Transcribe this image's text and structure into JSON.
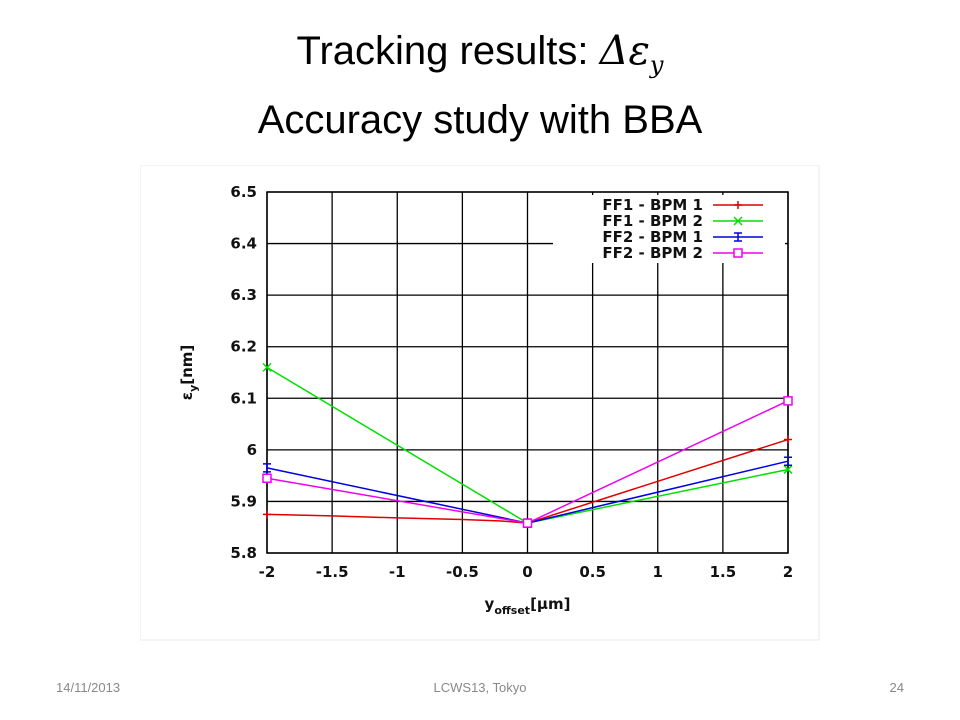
{
  "slide": {
    "title_text": "Tracking results: ",
    "title_math": "Δε",
    "title_math_subscript": "y",
    "subtitle": "Accuracy study with BBA",
    "footer_date": "14/11/2013",
    "footer_event": "LCWS13, Tokyo",
    "page_number": "24"
  },
  "chart_data": {
    "type": "line",
    "ylabel": "ε",
    "ylabel_subscript": "y",
    "ylabel_unit": "[nm]",
    "xlabel": "y",
    "xlabel_subscript": "offset",
    "xlabel_unit": "[μm]",
    "xlim": [
      -2,
      2
    ],
    "xticks": [
      -2,
      -1.5,
      -1,
      -0.5,
      0,
      0.5,
      1,
      1.5,
      2
    ],
    "ylim": [
      5.8,
      6.5
    ],
    "yticks": [
      5.8,
      5.9,
      6,
      6.1,
      6.2,
      6.3,
      6.4,
      6.5
    ],
    "grid": true,
    "legend": "top-right",
    "series": [
      {
        "name": "FF1 - BPM 1",
        "color": "#e00000",
        "marker": "plus",
        "x": [
          -2,
          -1.5,
          -1,
          -0.5,
          -0.2,
          0,
          2
        ],
        "values": [
          5.875,
          5.872,
          5.868,
          5.865,
          5.862,
          5.858,
          6.02
        ]
      },
      {
        "name": "FF1 - BPM 2",
        "color": "#00e000",
        "marker": "cross",
        "x": [
          -2,
          0,
          2
        ],
        "values": [
          6.16,
          5.858,
          5.962
        ]
      },
      {
        "name": "FF2 - BPM 1",
        "color": "#0000e0",
        "marker": "bar",
        "x": [
          -2,
          0,
          2
        ],
        "values": [
          5.965,
          5.858,
          5.978
        ]
      },
      {
        "name": "FF2 - BPM 2",
        "color": "#f000f0",
        "marker": "square",
        "x": [
          -2,
          0,
          2
        ],
        "values": [
          5.945,
          5.858,
          6.095
        ]
      }
    ]
  }
}
